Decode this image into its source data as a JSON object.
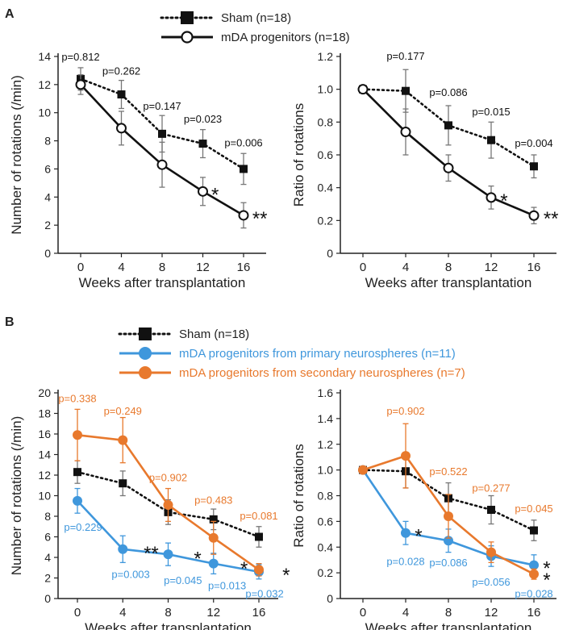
{
  "colors": {
    "sham": "#111111",
    "mda": "#111111",
    "primary": "#3f97dc",
    "secondary": "#e8792d",
    "axis": "#222222",
    "errorbar": "#777777"
  },
  "panel_a": {
    "label": "A",
    "legend": [
      {
        "text": "Sham (n=18)",
        "style": "dotted",
        "marker": "filled-square",
        "color": "#111111"
      },
      {
        "text": "mDA progenitors (n=18)",
        "style": "solid",
        "marker": "open-circle",
        "color": "#111111"
      }
    ]
  },
  "panel_b": {
    "label": "B",
    "legend": [
      {
        "text": "Sham (n=18)",
        "style": "dotted",
        "marker": "filled-square",
        "color": "#111111"
      },
      {
        "text": "mDA progenitors from primary neurospheres (n=11)",
        "style": "solid",
        "marker": "filled-circle",
        "color": "#3f97dc"
      },
      {
        "text": "mDA progenitors from secondary neurospheres (n=7)",
        "style": "solid",
        "marker": "filled-circle",
        "color": "#e8792d"
      }
    ]
  },
  "chart_data": [
    {
      "id": "a1",
      "type": "line",
      "xlabel": "Weeks after transplantation",
      "ylabel": "Number of rotations (/min)",
      "x": [
        0,
        4,
        8,
        12,
        16
      ],
      "ylim": [
        0,
        14
      ],
      "yticks": [
        0,
        2,
        4,
        6,
        8,
        10,
        12,
        14
      ],
      "yticklabels": [
        "0",
        "2",
        "4",
        "6",
        "8",
        "10",
        "12",
        "14"
      ],
      "series": [
        {
          "name": "Sham (n=18)",
          "style": "dotted",
          "marker": "filled-square",
          "color": "#111111",
          "values": [
            12.4,
            11.3,
            8.5,
            7.8,
            6.0
          ],
          "err": [
            0.8,
            1.0,
            1.3,
            1.0,
            1.1
          ]
        },
        {
          "name": "mDA progenitors (n=18)",
          "style": "solid",
          "marker": "open-circle",
          "color": "#111111",
          "values": [
            12.0,
            8.9,
            6.3,
            4.4,
            2.7
          ],
          "err": [
            0.7,
            1.2,
            1.6,
            1.0,
            0.9
          ]
        }
      ],
      "annotations": [
        {
          "text": "p=0.812",
          "x": 0,
          "y": 13.7,
          "color": "#111111"
        },
        {
          "text": "p=0.262",
          "x": 4,
          "y": 12.7,
          "color": "#111111"
        },
        {
          "text": "p=0.147",
          "x": 8,
          "y": 10.2,
          "color": "#111111"
        },
        {
          "text": "p=0.023",
          "x": 12,
          "y": 9.3,
          "color": "#111111"
        },
        {
          "text": "p=0.006",
          "x": 16,
          "y": 7.6,
          "color": "#111111"
        }
      ],
      "stars": [
        {
          "text": "*",
          "x": 13.2,
          "y": 4.4,
          "color": "#111111"
        },
        {
          "text": "**",
          "x": 17.6,
          "y": 2.7,
          "color": "#111111"
        }
      ]
    },
    {
      "id": "a2",
      "type": "line",
      "xlabel": "Weeks after transplantation",
      "ylabel": "Ratio of rotations",
      "x": [
        0,
        4,
        8,
        12,
        16
      ],
      "ylim": [
        0,
        1.2
      ],
      "yticks": [
        0,
        0.2,
        0.4,
        0.6,
        0.8,
        1.0,
        1.2
      ],
      "yticklabels": [
        "0",
        "0.2",
        "0.4",
        "0.6",
        "0.8",
        "1.0",
        "1.2"
      ],
      "series": [
        {
          "name": "Sham (n=18)",
          "style": "dotted",
          "marker": "filled-square",
          "color": "#111111",
          "values": [
            1.0,
            0.99,
            0.78,
            0.69,
            0.53
          ],
          "err": [
            0,
            0.13,
            0.12,
            0.11,
            0.07
          ]
        },
        {
          "name": "mDA progenitors (n=18)",
          "style": "solid",
          "marker": "open-circle",
          "color": "#111111",
          "values": [
            1.0,
            0.74,
            0.52,
            0.34,
            0.23
          ],
          "err": [
            0,
            0.14,
            0.08,
            0.07,
            0.05
          ]
        }
      ],
      "annotations": [
        {
          "text": "p=0.177",
          "x": 4,
          "y": 1.18,
          "color": "#111111"
        },
        {
          "text": "p=0.086",
          "x": 8,
          "y": 0.96,
          "color": "#111111"
        },
        {
          "text": "p=0.015",
          "x": 12,
          "y": 0.84,
          "color": "#111111"
        },
        {
          "text": "p=0.004",
          "x": 16,
          "y": 0.65,
          "color": "#111111"
        }
      ],
      "stars": [
        {
          "text": "*",
          "x": 13.2,
          "y": 0.34,
          "color": "#111111"
        },
        {
          "text": "**",
          "x": 17.6,
          "y": 0.23,
          "color": "#111111"
        }
      ]
    },
    {
      "id": "b1",
      "type": "line",
      "xlabel": "Weeks after transplantation",
      "ylabel": "Number of rotations (/min)",
      "x": [
        0,
        4,
        8,
        12,
        16
      ],
      "ylim": [
        0,
        20
      ],
      "yticks": [
        0,
        2,
        4,
        6,
        8,
        10,
        12,
        14,
        16,
        18,
        20
      ],
      "yticklabels": [
        "0",
        "2",
        "4",
        "6",
        "8",
        "10",
        "12",
        "14",
        "16",
        "18",
        "20"
      ],
      "series": [
        {
          "name": "Sham (n=18)",
          "style": "dotted",
          "marker": "filled-square",
          "color": "#111111",
          "values": [
            12.3,
            11.2,
            8.4,
            7.7,
            6.0
          ],
          "err": [
            1.1,
            1.2,
            1.2,
            1.0,
            1.0
          ]
        },
        {
          "name": "mDA progenitors from primary neurospheres (n=11)",
          "style": "solid",
          "marker": "filled-circle",
          "color": "#3f97dc",
          "values": [
            9.5,
            4.8,
            4.3,
            3.4,
            2.6
          ],
          "err": [
            1.2,
            1.3,
            1.1,
            1.0,
            0.7
          ]
        },
        {
          "name": "mDA progenitors from secondary neurospheres (n=7)",
          "style": "solid",
          "marker": "filled-circle",
          "color": "#e8792d",
          "values": [
            15.9,
            15.4,
            9.1,
            5.9,
            2.8
          ],
          "err": [
            2.5,
            2.2,
            1.6,
            1.6,
            0.6
          ]
        }
      ],
      "annotations": [
        {
          "text": "p=0.338",
          "x": 0,
          "y": 19.1,
          "color": "#e8792d"
        },
        {
          "text": "p=0.249",
          "x": 4,
          "y": 17.9,
          "color": "#e8792d"
        },
        {
          "text": "p=0.902",
          "x": 8,
          "y": 11.4,
          "color": "#e8792d"
        },
        {
          "text": "p=0.483",
          "x": 12,
          "y": 9.2,
          "color": "#e8792d"
        },
        {
          "text": "p=0.081",
          "x": 16,
          "y": 7.7,
          "color": "#e8792d"
        },
        {
          "text": "p=0.229",
          "x": 0.5,
          "y": 6.6,
          "color": "#3f97dc"
        },
        {
          "text": "p=0.003",
          "x": 4.7,
          "y": 2.0,
          "color": "#3f97dc"
        },
        {
          "text": "p=0.045",
          "x": 9.3,
          "y": 1.4,
          "color": "#3f97dc"
        },
        {
          "text": "p=0.013",
          "x": 13.2,
          "y": 0.9,
          "color": "#3f97dc"
        },
        {
          "text": "p=0.032",
          "x": 16.5,
          "y": 0.1,
          "color": "#3f97dc"
        }
      ],
      "stars": [
        {
          "text": "**",
          "x": 6.5,
          "y": 4.7,
          "color": "#111111"
        },
        {
          "text": "*",
          "x": 10.6,
          "y": 4.2,
          "color": "#111111"
        },
        {
          "text": "*",
          "x": 14.7,
          "y": 3.2,
          "color": "#111111"
        },
        {
          "text": "*",
          "x": 18.4,
          "y": 2.6,
          "color": "#111111"
        }
      ]
    },
    {
      "id": "b2",
      "type": "line",
      "xlabel": "Weeks after transplantation",
      "ylabel": "Ratio of rotations",
      "x": [
        0,
        4,
        8,
        12,
        16
      ],
      "ylim": [
        0,
        1.6
      ],
      "yticks": [
        0,
        0.2,
        0.4,
        0.6,
        0.8,
        1.0,
        1.2,
        1.4,
        1.6
      ],
      "yticklabels": [
        "0",
        "0.2",
        "0.4",
        "0.6",
        "0.8",
        "1.0",
        "1.2",
        "1.4",
        "1.6"
      ],
      "series": [
        {
          "name": "Sham (n=18)",
          "style": "dotted",
          "marker": "filled-square",
          "color": "#111111",
          "values": [
            1.0,
            0.99,
            0.78,
            0.69,
            0.53
          ],
          "err": [
            0,
            0.13,
            0.12,
            0.11,
            0.08
          ]
        },
        {
          "name": "mDA progenitors from primary neurospheres (n=11)",
          "style": "solid",
          "marker": "filled-circle",
          "color": "#3f97dc",
          "values": [
            1.0,
            0.51,
            0.45,
            0.33,
            0.26
          ],
          "err": [
            0,
            0.09,
            0.09,
            0.08,
            0.08
          ]
        },
        {
          "name": "mDA progenitors from secondary neurospheres (n=7)",
          "style": "solid",
          "marker": "filled-circle",
          "color": "#e8792d",
          "values": [
            1.0,
            1.11,
            0.64,
            0.36,
            0.19
          ],
          "err": [
            0,
            0.25,
            0.17,
            0.08,
            0.04
          ]
        }
      ],
      "annotations": [
        {
          "text": "p=0.902",
          "x": 4,
          "y": 1.43,
          "color": "#e8792d"
        },
        {
          "text": "p=0.522",
          "x": 8,
          "y": 0.96,
          "color": "#e8792d"
        },
        {
          "text": "p=0.277",
          "x": 12,
          "y": 0.83,
          "color": "#e8792d"
        },
        {
          "text": "p=0.045",
          "x": 16,
          "y": 0.67,
          "color": "#e8792d"
        },
        {
          "text": "p=0.028",
          "x": 4,
          "y": 0.26,
          "color": "#3f97dc"
        },
        {
          "text": "p=0.086",
          "x": 8,
          "y": 0.25,
          "color": "#3f97dc"
        },
        {
          "text": "p=0.056",
          "x": 12,
          "y": 0.1,
          "color": "#3f97dc"
        },
        {
          "text": "p=0.028",
          "x": 16,
          "y": 0.01,
          "color": "#3f97dc"
        }
      ],
      "stars": [
        {
          "text": "*",
          "x": 5.2,
          "y": 0.51,
          "color": "#111111"
        },
        {
          "text": "*",
          "x": 17.2,
          "y": 0.26,
          "color": "#111111"
        },
        {
          "text": "*",
          "x": 17.2,
          "y": 0.17,
          "color": "#111111"
        }
      ]
    }
  ]
}
